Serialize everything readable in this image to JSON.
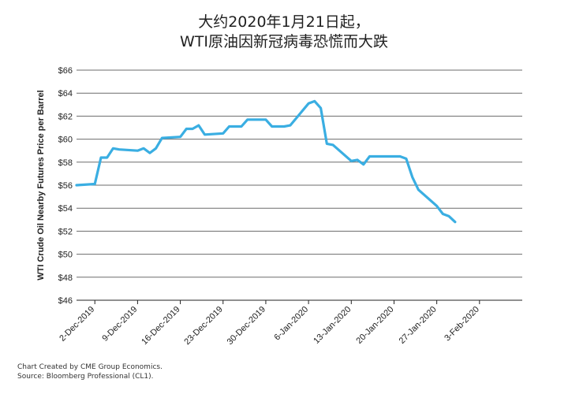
{
  "title_line1": "大约2020年1月21日起，",
  "title_line2": "WTI原油因新冠病毒恐慌而大跌",
  "footer_line1": "Chart Created by CME Group Economics.",
  "footer_line2": "Source:  Bloomberg Professional (CL1).",
  "colors": {
    "line": "#3aaee2",
    "grid": "#6b6b6b",
    "axis": "#222222"
  },
  "chart_data": {
    "type": "line",
    "title": "大约2020年1月21日起，WTI原油因新冠病毒恐慌而大跌",
    "ylabel": "WTI Crude Oil Nearby Futures Price per Barrel",
    "xlabel": "",
    "ylim": [
      46,
      66
    ],
    "yticks": [
      46,
      48,
      50,
      52,
      54,
      56,
      58,
      60,
      62,
      64,
      66
    ],
    "ytick_labels": [
      "$46",
      "$48",
      "$50",
      "$52",
      "$54",
      "$56",
      "$58",
      "$60",
      "$62",
      "$64",
      "$66"
    ],
    "xlim": [
      "2019-11-29",
      "2020-02-10"
    ],
    "xticks": [
      "2019-12-02",
      "2019-12-09",
      "2019-12-16",
      "2019-12-23",
      "2019-12-30",
      "2020-01-06",
      "2020-01-13",
      "2020-01-20",
      "2020-01-27",
      "2020-02-03"
    ],
    "xtick_labels": [
      "2-Dec-2019",
      "9-Dec-2019",
      "16-Dec-2019",
      "23-Dec-2019",
      "30-Dec-2019",
      "6-Jan-2020",
      "13-Jan-2020",
      "20-Jan-2020",
      "27-Jan-2020",
      "3-Feb-2020"
    ],
    "grid": true,
    "series": [
      {
        "x": [
          "2019-11-29",
          "2019-12-02",
          "2019-12-03",
          "2019-12-04",
          "2019-12-05",
          "2019-12-06",
          "2019-12-09",
          "2019-12-10",
          "2019-12-11",
          "2019-12-12",
          "2019-12-13",
          "2019-12-16",
          "2019-12-17",
          "2019-12-18",
          "2019-12-19",
          "2019-12-20",
          "2019-12-23",
          "2019-12-24",
          "2019-12-26",
          "2019-12-27",
          "2019-12-30",
          "2019-12-31",
          "2020-01-02",
          "2020-01-03",
          "2020-01-06",
          "2020-01-07",
          "2020-01-08",
          "2020-01-09",
          "2020-01-10",
          "2020-01-13",
          "2020-01-14",
          "2020-01-15",
          "2020-01-16",
          "2020-01-17",
          "2020-01-21",
          "2020-01-22",
          "2020-01-23",
          "2020-01-24",
          "2020-01-27",
          "2020-01-28",
          "2020-01-29",
          "2020-01-30"
        ],
        "values": [
          56.0,
          56.1,
          58.4,
          58.4,
          59.2,
          59.1,
          59.0,
          59.2,
          58.8,
          59.2,
          60.1,
          60.2,
          60.9,
          60.9,
          61.2,
          60.4,
          60.5,
          61.1,
          61.1,
          61.7,
          61.7,
          61.1,
          61.1,
          61.2,
          63.1,
          63.3,
          62.7,
          59.6,
          59.5,
          58.1,
          58.2,
          57.8,
          58.5,
          58.5,
          58.5,
          58.3,
          56.7,
          55.6,
          54.2,
          53.5,
          53.3,
          52.8
        ]
      }
    ]
  }
}
